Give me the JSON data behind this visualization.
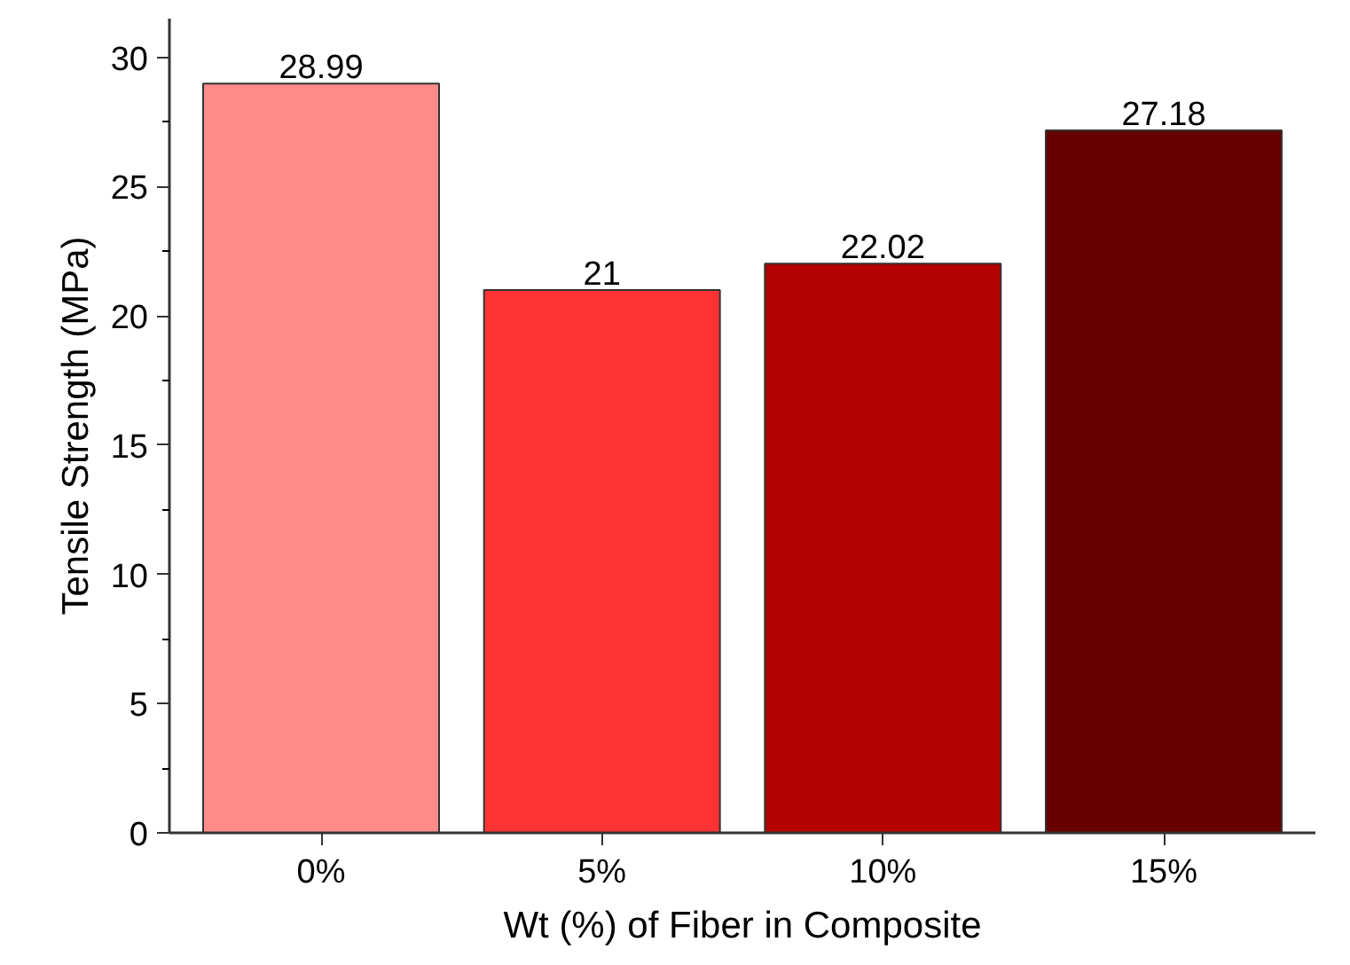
{
  "chart_data": {
    "type": "bar",
    "xlabel": "Wt (%) of Fiber in Composite",
    "ylabel": "Tensile Strength (MPa)",
    "categories": [
      "0%",
      "5%",
      "10%",
      "15%"
    ],
    "values": [
      28.99,
      21,
      22.02,
      27.18
    ],
    "colors": [
      "#ff8a8a",
      "#ff3333",
      "#b30000",
      "#660000"
    ],
    "ylim": [
      0,
      31.5
    ],
    "yticks": [
      0,
      5,
      10,
      15,
      20,
      25,
      30
    ],
    "data_labels": true,
    "grid": false
  }
}
